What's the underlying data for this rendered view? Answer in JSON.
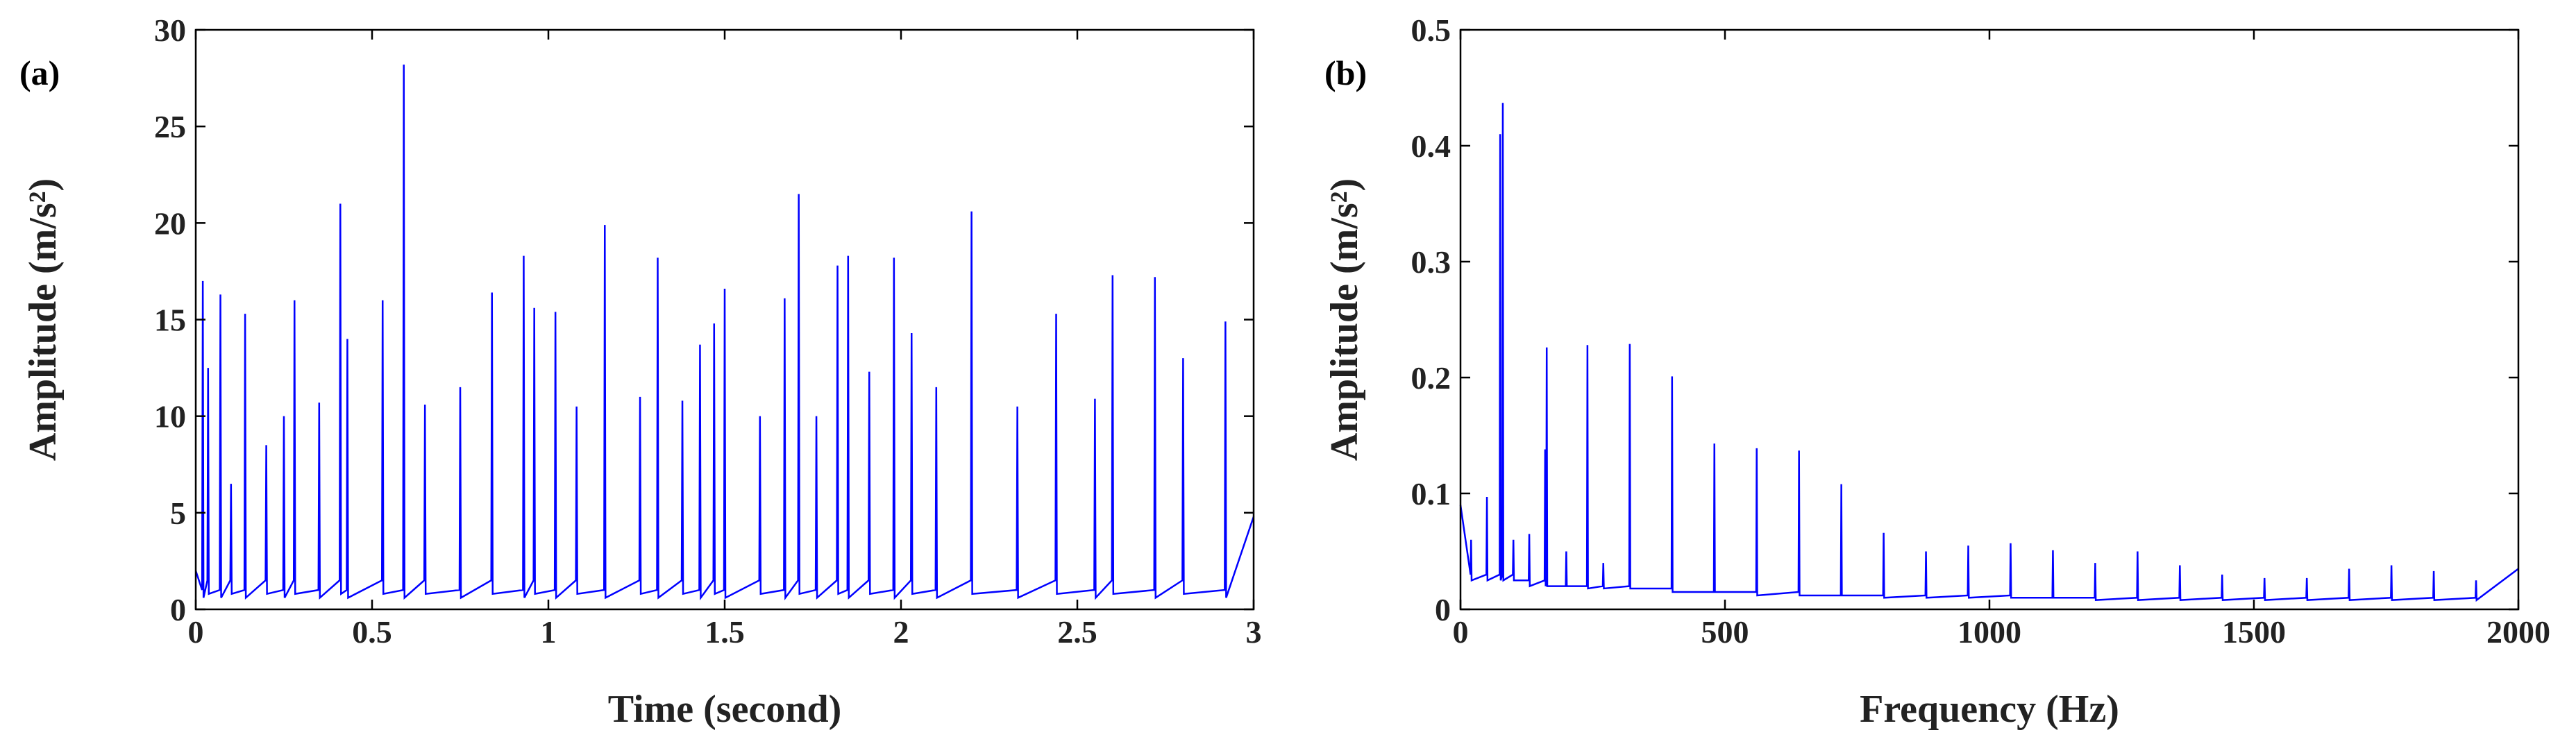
{
  "chart_data": [
    {
      "type": "line",
      "panel_label": "(a)",
      "xlabel": "Time (second)",
      "ylabel": "Amplitude (m/s²)",
      "xlim": [
        0,
        3
      ],
      "ylim": [
        0,
        30
      ],
      "xticks": [
        0,
        0.5,
        1,
        1.5,
        2,
        2.5,
        3
      ],
      "yticks": [
        0,
        5,
        10,
        15,
        20,
        25,
        30
      ],
      "x": [
        0,
        0.018,
        0.02,
        0.022,
        0.033,
        0.035,
        0.037,
        0.068,
        0.07,
        0.072,
        0.098,
        0.1,
        0.102,
        0.138,
        0.14,
        0.142,
        0.198,
        0.2,
        0.202,
        0.248,
        0.25,
        0.252,
        0.278,
        0.28,
        0.282,
        0.348,
        0.35,
        0.352,
        0.408,
        0.41,
        0.412,
        0.428,
        0.43,
        0.432,
        0.528,
        0.53,
        0.532,
        0.588,
        0.59,
        0.592,
        0.648,
        0.65,
        0.652,
        0.748,
        0.75,
        0.752,
        0.838,
        0.84,
        0.842,
        0.928,
        0.93,
        0.932,
        0.958,
        0.96,
        0.962,
        1.018,
        1.02,
        1.022,
        1.078,
        1.08,
        1.082,
        1.158,
        1.16,
        1.162,
        1.258,
        1.26,
        1.262,
        1.308,
        1.31,
        1.312,
        1.378,
        1.38,
        1.382,
        1.428,
        1.43,
        1.432,
        1.468,
        1.47,
        1.472,
        1.498,
        1.5,
        1.502,
        1.598,
        1.6,
        1.602,
        1.668,
        1.67,
        1.672,
        1.708,
        1.71,
        1.712,
        1.758,
        1.76,
        1.762,
        1.818,
        1.82,
        1.822,
        1.848,
        1.85,
        1.852,
        1.908,
        1.91,
        1.912,
        1.978,
        1.98,
        1.982,
        2.028,
        2.03,
        2.032,
        2.098,
        2.1,
        2.102,
        2.198,
        2.2,
        2.202,
        2.328,
        2.33,
        2.332,
        2.438,
        2.44,
        2.442,
        2.548,
        2.55,
        2.552,
        2.598,
        2.6,
        2.602,
        2.718,
        2.72,
        2.722,
        2.798,
        2.8,
        2.802,
        2.918,
        2.92,
        2.922,
        3
      ],
      "series": [
        {
          "color": "#0000ff",
          "values": [
            2,
            1,
            17,
            0.6,
            1.5,
            12.5,
            0.8,
            1,
            16.3,
            0.6,
            1.5,
            6.5,
            0.8,
            1,
            15.3,
            0.6,
            1.5,
            8.5,
            0.8,
            1,
            10,
            0.6,
            1.5,
            16,
            0.8,
            1,
            10.7,
            0.6,
            1.5,
            21,
            0.8,
            1,
            14,
            0.6,
            1.5,
            16,
            0.8,
            1,
            28.2,
            0.6,
            1.5,
            10.6,
            0.8,
            1,
            11.5,
            0.6,
            1.5,
            16.4,
            0.8,
            1,
            18.3,
            0.6,
            1.5,
            15.6,
            0.8,
            1,
            15.4,
            0.6,
            1.5,
            10.5,
            0.8,
            1,
            19.9,
            0.6,
            1.5,
            11,
            0.8,
            1,
            18.2,
            0.6,
            1.5,
            10.8,
            0.8,
            1,
            13.7,
            0.6,
            1.5,
            14.8,
            0.8,
            1,
            16.6,
            0.6,
            1.5,
            10,
            0.8,
            1,
            16.1,
            0.6,
            1.5,
            21.5,
            0.8,
            1,
            10,
            0.6,
            1.5,
            17.8,
            0.8,
            1,
            18.3,
            0.6,
            1.5,
            12.3,
            0.8,
            1,
            18.2,
            0.6,
            1.5,
            14.3,
            0.8,
            1,
            11.5,
            0.6,
            1.5,
            20.6,
            0.8,
            1,
            10.5,
            0.6,
            1.5,
            15.3,
            0.8,
            1,
            10.9,
            0.6,
            1.5,
            17.3,
            0.8,
            1,
            17.2,
            0.6,
            1.5,
            13,
            0.8,
            1,
            14.9,
            0.6,
            4.8
          ]
        }
      ]
    },
    {
      "type": "line",
      "panel_label": "(b)",
      "xlabel": "Frequency (Hz)",
      "ylabel": "Amplitude (m/s²)",
      "xlim": [
        0,
        2000
      ],
      "ylim": [
        0,
        0.5
      ],
      "xticks": [
        0,
        500,
        1000,
        1500,
        2000
      ],
      "yticks": [
        0,
        0.1,
        0.2,
        0.3,
        0.4,
        0.5
      ],
      "x": [
        0,
        19,
        20,
        21,
        49,
        50,
        51,
        74,
        75,
        76,
        79,
        80,
        81,
        99,
        100,
        101,
        129,
        130,
        131,
        159,
        160,
        161,
        162,
        163,
        164,
        199,
        200,
        201,
        239,
        240,
        241,
        269,
        270,
        271,
        319,
        320,
        321,
        399,
        400,
        401,
        479,
        480,
        481,
        559,
        560,
        561,
        639,
        640,
        641,
        719,
        720,
        721,
        799,
        800,
        801,
        879,
        880,
        881,
        959,
        960,
        961,
        1039,
        1040,
        1041,
        1119,
        1120,
        1121,
        1199,
        1200,
        1201,
        1279,
        1280,
        1281,
        1359,
        1360,
        1361,
        1439,
        1440,
        1441,
        1519,
        1520,
        1521,
        1599,
        1600,
        1601,
        1679,
        1680,
        1681,
        1759,
        1760,
        1761,
        1839,
        1840,
        1841,
        1919,
        1920,
        1921,
        2000
      ],
      "series": [
        {
          "color": "#0000ff",
          "values": [
            0.09,
            0.03,
            0.06,
            0.025,
            0.03,
            0.097,
            0.025,
            0.03,
            0.41,
            0.025,
            0.03,
            0.437,
            0.025,
            0.03,
            0.06,
            0.025,
            0.025,
            0.065,
            0.02,
            0.025,
            0.138,
            0.02,
            0.025,
            0.226,
            0.02,
            0.02,
            0.05,
            0.02,
            0.02,
            0.228,
            0.018,
            0.02,
            0.04,
            0.018,
            0.02,
            0.229,
            0.018,
            0.018,
            0.201,
            0.015,
            0.015,
            0.143,
            0.015,
            0.015,
            0.139,
            0.012,
            0.015,
            0.137,
            0.012,
            0.012,
            0.108,
            0.012,
            0.012,
            0.066,
            0.01,
            0.012,
            0.05,
            0.01,
            0.012,
            0.055,
            0.01,
            0.012,
            0.057,
            0.01,
            0.01,
            0.051,
            0.01,
            0.01,
            0.04,
            0.008,
            0.01,
            0.05,
            0.008,
            0.01,
            0.038,
            0.008,
            0.01,
            0.03,
            0.008,
            0.01,
            0.027,
            0.008,
            0.01,
            0.027,
            0.008,
            0.01,
            0.035,
            0.008,
            0.01,
            0.038,
            0.008,
            0.01,
            0.033,
            0.008,
            0.01,
            0.025,
            0.008,
            0.035
          ]
        }
      ]
    }
  ]
}
